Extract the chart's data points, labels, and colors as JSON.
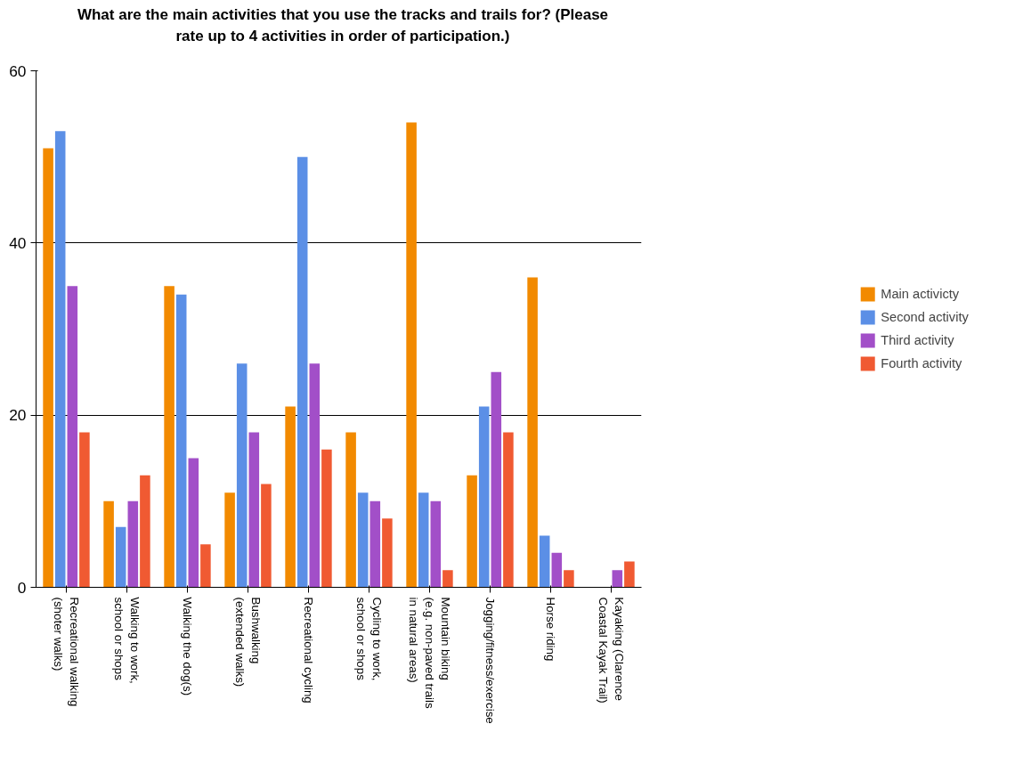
{
  "chart_data": {
    "type": "bar",
    "title": "What are the main activities that you use the tracks and trails for? (Please\nrate up to 4 activities in order of participation.)",
    "categories": [
      "Recreational walking\n(shoter walks)",
      "Walking to work,\nschool or shops",
      "Walking the dog(s)",
      "Bushwalking\n(extended walks)",
      "Recreational cycling",
      "Cycling to work,\nschool or shops",
      "Mountain biking\n(e.g. non-paved trails\nin natural areas)",
      "Jogging/fitness/exercise",
      "Horse riding",
      "Kayaking (Clarence\nCoastal Kayak Trail)"
    ],
    "series": [
      {
        "name": "Main activicty",
        "color": "#f28a00",
        "values": [
          51,
          10,
          35,
          11,
          21,
          18,
          54,
          13,
          36,
          0
        ]
      },
      {
        "name": "Second activity",
        "color": "#5b8fe6",
        "values": [
          53,
          7,
          34,
          26,
          50,
          11,
          11,
          21,
          6,
          0
        ]
      },
      {
        "name": "Third activity",
        "color": "#a24fc8",
        "values": [
          35,
          10,
          15,
          18,
          26,
          10,
          10,
          25,
          4,
          2
        ]
      },
      {
        "name": "Fourth activity",
        "color": "#f05a32",
        "values": [
          18,
          13,
          5,
          12,
          16,
          8,
          2,
          18,
          2,
          3
        ]
      }
    ],
    "ylim": [
      0,
      60
    ],
    "yticks": [
      0,
      20,
      40,
      60
    ],
    "grid": "y",
    "legend": "right"
  }
}
